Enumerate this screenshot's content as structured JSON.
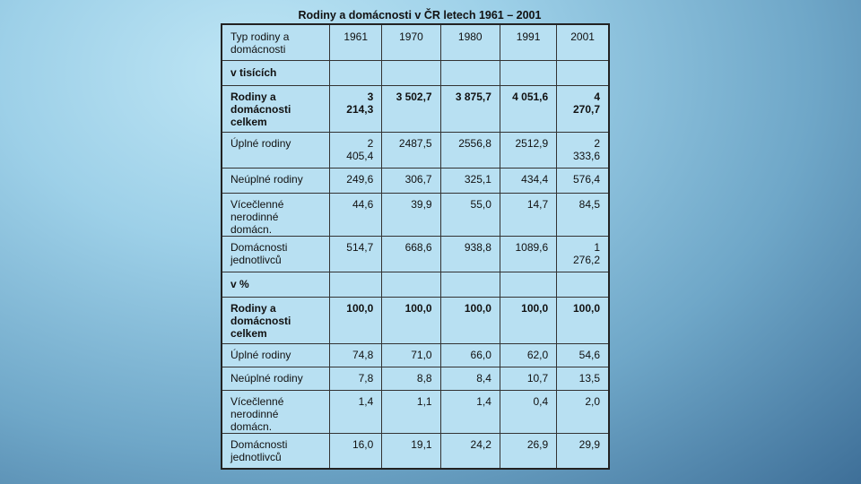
{
  "title": "Rodiny a domácnosti v ČR letech 1961 – 2001",
  "header": {
    "label": "Typ rodiny a domácnosti",
    "years": [
      "1961",
      "1970",
      "1980",
      "1991",
      "2001"
    ]
  },
  "sections": [
    {
      "heading": "v tisících",
      "rows": [
        {
          "label": "Rodiny a domácnosti celkem",
          "bold": true,
          "values": [
            "3 214,3",
            "3 502,7",
            "3 875,7",
            "4 051,6",
            "4 270,7"
          ]
        },
        {
          "label": "Úplné rodiny",
          "bold": false,
          "values": [
            "2 405,4",
            "2487,5",
            "2556,8",
            "2512,9",
            "2 333,6"
          ]
        },
        {
          "label": "Neúplné rodiny",
          "bold": false,
          "values": [
            "249,6",
            "306,7",
            "325,1",
            "434,4",
            "576,4"
          ]
        },
        {
          "label": "Vícečlenné nerodinné domácn.",
          "bold": false,
          "values": [
            "44,6",
            "39,9",
            "55,0",
            "14,7",
            "84,5"
          ]
        },
        {
          "label": "Domácnosti jednotlivců",
          "bold": false,
          "values": [
            "514,7",
            "668,6",
            "938,8",
            "1089,6",
            "1 276,2"
          ]
        }
      ]
    },
    {
      "heading": "v %",
      "rows": [
        {
          "label": "Rodiny a domácnosti celkem",
          "bold": true,
          "values": [
            "100,0",
            "100,0",
            "100,0",
            "100,0",
            "100,0"
          ]
        },
        {
          "label": "Úplné rodiny",
          "bold": false,
          "values": [
            "74,8",
            "71,0",
            "66,0",
            "62,0",
            "54,6"
          ]
        },
        {
          "label": "Neúplné rodiny",
          "bold": false,
          "values": [
            "7,8",
            "8,8",
            "8,4",
            "10,7",
            "13,5"
          ]
        },
        {
          "label": "Vícečlenné nerodinné domácn.",
          "bold": false,
          "values": [
            "1,4",
            "1,1",
            "1,4",
            "0,4",
            "2,0"
          ]
        },
        {
          "label": "Domácnosti jednotlivců",
          "bold": false,
          "values": [
            "16,0",
            "19,1",
            "24,2",
            "26,9",
            "29,9"
          ]
        }
      ]
    }
  ]
}
